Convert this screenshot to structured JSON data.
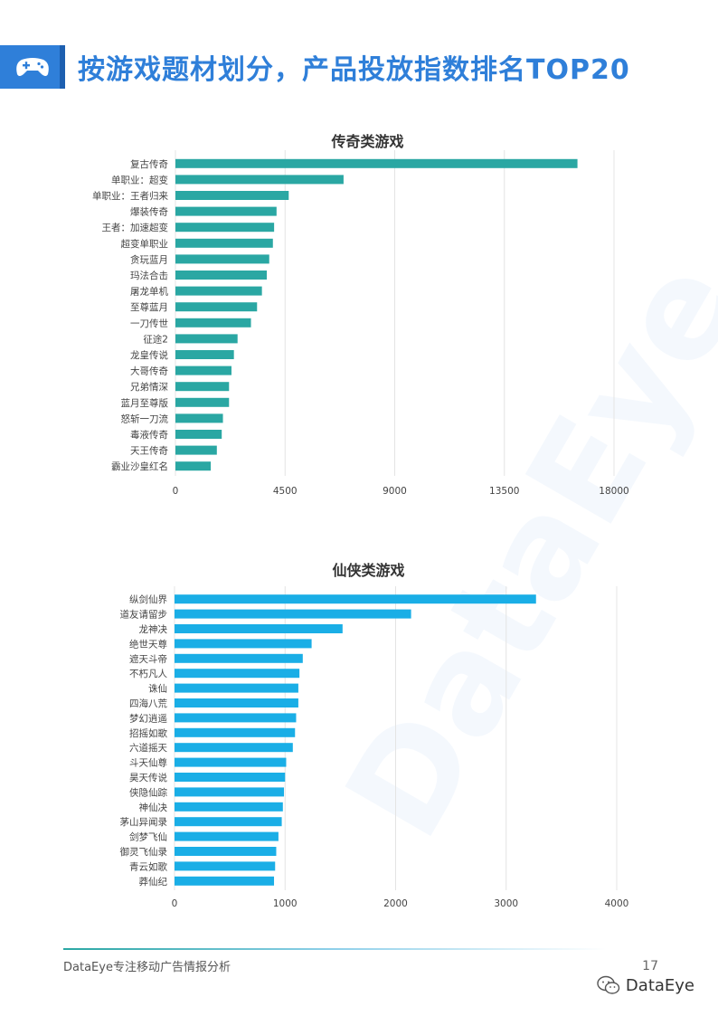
{
  "header": {
    "title": "按游戏题材划分，产品投放指数排名TOP20",
    "icon": "gamepad-icon",
    "accent_color": "#2f7fd9"
  },
  "watermark": {
    "text": "DataEye"
  },
  "chart_data": [
    {
      "type": "bar",
      "orientation": "horizontal",
      "title": "传奇类游戏",
      "bar_color": "#2aa7a3",
      "categories": [
        "复古传奇",
        "单职业：超变",
        "单职业：王者归来",
        "爆装传奇",
        "王者：加速超变",
        "超变单职业",
        "贪玩蓝月",
        "玛法合击",
        "屠龙单机",
        "至尊蓝月",
        "一刀传世",
        "征途2",
        "龙皇传说",
        "大哥传奇",
        "兄弟情深",
        "蓝月至尊版",
        "怒斩一刀流",
        "毒液传奇",
        "天王传奇",
        "霸业沙皇红名"
      ],
      "values": [
        16500,
        6900,
        4650,
        4150,
        4050,
        4000,
        3850,
        3750,
        3550,
        3350,
        3100,
        2550,
        2400,
        2300,
        2200,
        2200,
        1950,
        1900,
        1700,
        1450
      ],
      "xticks": [
        0,
        4500,
        9000,
        13500,
        18000
      ],
      "xlim": [
        0,
        18000
      ],
      "grid": true
    },
    {
      "type": "bar",
      "orientation": "horizontal",
      "title": "仙侠类游戏",
      "bar_color": "#1aaee6",
      "categories": [
        "纵剑仙界",
        "道友请留步",
        "龙神决",
        "绝世天尊",
        "遮天斗帝",
        "不朽凡人",
        "诛仙",
        "四海八荒",
        "梦幻逍遥",
        "招摇如歌",
        "六道摇天",
        "斗天仙尊",
        "昊天传说",
        "侠隐仙踪",
        "神仙决",
        "茅山异闻录",
        "剑梦飞仙",
        "御灵飞仙录",
        "青云如歌",
        "莽仙纪"
      ],
      "values": [
        3270,
        2140,
        1520,
        1240,
        1160,
        1130,
        1120,
        1120,
        1100,
        1090,
        1070,
        1010,
        1000,
        990,
        980,
        970,
        940,
        920,
        910,
        900
      ],
      "xticks": [
        0,
        1000,
        2000,
        3000,
        4000
      ],
      "xlim": [
        0,
        4000
      ],
      "grid": true
    }
  ],
  "footer": {
    "text": "DataEye专注移动广告情报分析",
    "page_number": "17",
    "brand": "DataEye",
    "brand_icon": "wechat-icon"
  }
}
